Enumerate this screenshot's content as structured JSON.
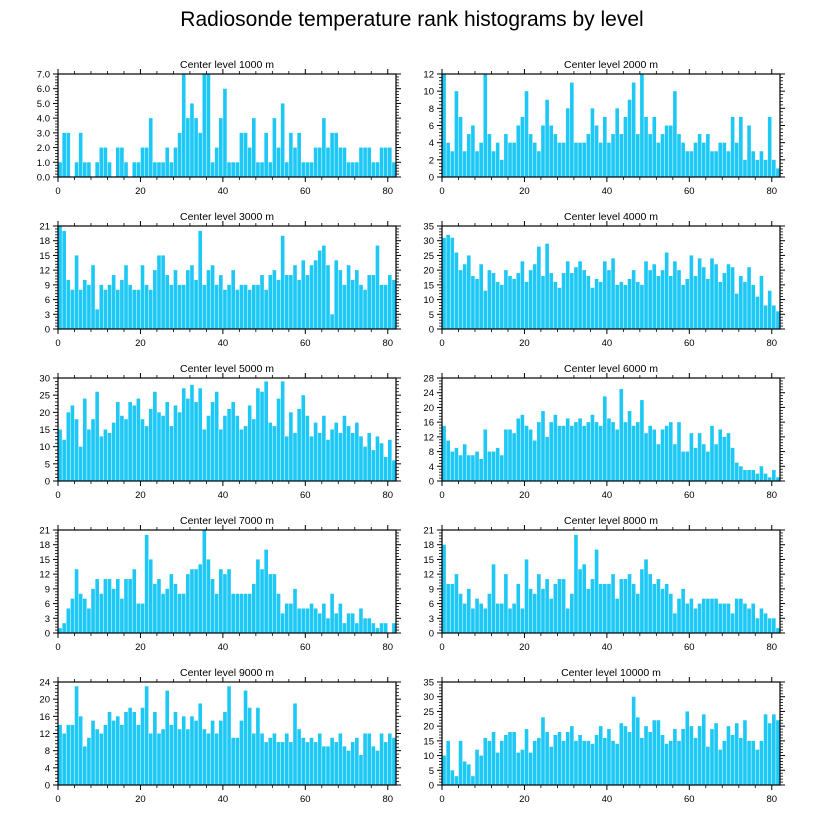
{
  "title": "Radiosonde temperature rank histograms by level",
  "bar_color": "#1ec8f5",
  "chart_data": [
    {
      "type": "bar",
      "title": "Center level 1000 m",
      "x_start": 0,
      "xlim": [
        0,
        82
      ],
      "x_ticks": [
        0,
        20,
        40,
        60,
        80
      ],
      "ylim": [
        0,
        7
      ],
      "y_ticks": [
        0,
        1,
        2,
        3,
        4,
        5,
        6,
        7
      ],
      "y_decimals": 1,
      "values": [
        1,
        3,
        3,
        0,
        1,
        3,
        1,
        1,
        0,
        1,
        2,
        2,
        1,
        0,
        2,
        2,
        1,
        0,
        1,
        1,
        2,
        2,
        4,
        1,
        1,
        1,
        2,
        1,
        2,
        3,
        7,
        4,
        5,
        4,
        3,
        7,
        7,
        1,
        2,
        4,
        6,
        1,
        1,
        1,
        3,
        3,
        2,
        4,
        1,
        1,
        3,
        1,
        4,
        2,
        5,
        1,
        3,
        2,
        3,
        1,
        1,
        1,
        2,
        2,
        4,
        2,
        3,
        3,
        2,
        2,
        1,
        1,
        1,
        2,
        2,
        2,
        1,
        1,
        2,
        2,
        2,
        1
      ]
    },
    {
      "type": "bar",
      "title": "Center level 2000 m",
      "x_start": 0,
      "xlim": [
        0,
        82
      ],
      "x_ticks": [
        0,
        20,
        40,
        60,
        80
      ],
      "ylim": [
        0,
        12
      ],
      "y_ticks": [
        0,
        2,
        4,
        6,
        8,
        10,
        12
      ],
      "y_decimals": 0,
      "values": [
        12,
        4,
        3,
        10,
        7,
        3,
        5,
        6,
        3,
        4,
        12,
        5,
        3,
        4,
        2,
        5,
        4,
        4,
        6,
        7,
        10,
        5,
        4,
        3,
        6,
        9,
        6,
        5,
        4,
        4,
        8,
        11,
        4,
        4,
        4,
        5,
        8,
        6,
        4,
        7,
        4,
        5,
        8,
        5,
        7,
        9,
        11,
        5,
        12,
        7,
        5,
        7,
        4,
        5,
        6,
        6,
        10,
        5,
        4,
        3,
        3,
        4,
        5,
        4,
        5,
        3,
        3,
        4,
        4,
        3,
        7,
        4,
        7,
        2,
        6,
        3,
        2,
        3,
        2,
        7,
        2,
        1
      ]
    },
    {
      "type": "bar",
      "title": "Center level 3000 m",
      "x_start": 0,
      "xlim": [
        0,
        82
      ],
      "x_ticks": [
        0,
        20,
        40,
        60,
        80
      ],
      "ylim": [
        0,
        21
      ],
      "y_ticks": [
        0,
        3,
        6,
        9,
        12,
        15,
        18,
        21
      ],
      "y_decimals": 0,
      "values": [
        21,
        20,
        10,
        8,
        15,
        8,
        10,
        9,
        13,
        4,
        9,
        8,
        9,
        11,
        8,
        10,
        13,
        9,
        8,
        8,
        13,
        9,
        8,
        12,
        15,
        15,
        11,
        9,
        12,
        9,
        9,
        12,
        13,
        10,
        20,
        9,
        12,
        13,
        9,
        11,
        8,
        9,
        12,
        8,
        9,
        9,
        8,
        9,
        9,
        11,
        8,
        11,
        12,
        10,
        19,
        11,
        11,
        13,
        10,
        14,
        11,
        13,
        14,
        16,
        17,
        13,
        3,
        14,
        12,
        9,
        13,
        10,
        12,
        9,
        8,
        11,
        11,
        17,
        9,
        9,
        11,
        10
      ]
    },
    {
      "type": "bar",
      "title": "Center level 4000 m",
      "x_start": 0,
      "xlim": [
        0,
        82
      ],
      "x_ticks": [
        0,
        20,
        40,
        60,
        80
      ],
      "ylim": [
        0,
        35
      ],
      "y_ticks": [
        0,
        5,
        10,
        15,
        20,
        25,
        30,
        35
      ],
      "y_decimals": 0,
      "values": [
        31,
        32,
        31,
        26,
        20,
        22,
        25,
        18,
        17,
        22,
        13,
        20,
        19,
        16,
        15,
        20,
        18,
        17,
        19,
        23,
        16,
        20,
        22,
        28,
        18,
        29,
        19,
        16,
        14,
        19,
        23,
        19,
        21,
        23,
        20,
        18,
        14,
        17,
        16,
        23,
        20,
        24,
        15,
        16,
        15,
        17,
        20,
        16,
        15,
        23,
        20,
        22,
        18,
        20,
        26,
        18,
        23,
        20,
        15,
        17,
        25,
        18,
        24,
        21,
        17,
        24,
        22,
        16,
        19,
        22,
        21,
        12,
        18,
        16,
        21,
        15,
        11,
        18,
        8,
        13,
        8,
        6
      ]
    },
    {
      "type": "bar",
      "title": "Center level 5000 m",
      "x_start": 0,
      "xlim": [
        0,
        82
      ],
      "x_ticks": [
        0,
        20,
        40,
        60,
        80
      ],
      "ylim": [
        0,
        30
      ],
      "y_ticks": [
        0,
        5,
        10,
        15,
        20,
        25,
        30
      ],
      "y_decimals": 0,
      "values": [
        15,
        12,
        20,
        22,
        18,
        10,
        24,
        15,
        18,
        26,
        13,
        15,
        14,
        17,
        23,
        19,
        18,
        23,
        22,
        24,
        18,
        16,
        21,
        26,
        20,
        19,
        23,
        16,
        22,
        20,
        27,
        24,
        28,
        23,
        27,
        15,
        19,
        23,
        26,
        15,
        19,
        21,
        23,
        19,
        15,
        16,
        22,
        18,
        27,
        26,
        29,
        17,
        16,
        24,
        29,
        13,
        20,
        14,
        21,
        25,
        19,
        13,
        17,
        14,
        19,
        12,
        15,
        17,
        14,
        19,
        16,
        14,
        17,
        13,
        10,
        14,
        9,
        13,
        11,
        7,
        12,
        6
      ]
    },
    {
      "type": "bar",
      "title": "Center level 6000 m",
      "x_start": 0,
      "xlim": [
        0,
        82
      ],
      "x_ticks": [
        0,
        20,
        40,
        60,
        80
      ],
      "ylim": [
        0,
        28
      ],
      "y_ticks": [
        0,
        4,
        8,
        12,
        16,
        20,
        24,
        28
      ],
      "y_decimals": 0,
      "values": [
        15,
        11,
        8,
        9,
        7,
        10,
        7,
        7,
        8,
        6,
        14,
        8,
        8,
        9,
        7,
        14,
        14,
        13,
        17,
        18,
        15,
        14,
        11,
        16,
        19,
        12,
        16,
        18,
        15,
        15,
        17,
        15,
        16,
        17,
        15,
        16,
        18,
        16,
        15,
        23,
        17,
        16,
        14,
        25,
        16,
        19,
        15,
        16,
        22,
        13,
        15,
        14,
        10,
        14,
        15,
        16,
        10,
        16,
        8,
        8,
        13,
        9,
        13,
        10,
        8,
        15,
        10,
        14,
        12,
        13,
        9,
        5,
        4,
        3,
        3,
        3,
        2,
        4,
        2,
        1,
        3,
        1
      ]
    },
    {
      "type": "bar",
      "title": "Center level 7000 m",
      "x_start": 0,
      "xlim": [
        0,
        82
      ],
      "x_ticks": [
        0,
        20,
        40,
        60,
        80
      ],
      "ylim": [
        0,
        21
      ],
      "y_ticks": [
        0,
        3,
        6,
        9,
        12,
        15,
        18,
        21
      ],
      "y_decimals": 0,
      "values": [
        1,
        2,
        5,
        7,
        13,
        8,
        7,
        5,
        9,
        11,
        8,
        11,
        11,
        9,
        11,
        7,
        11,
        11,
        13,
        6,
        6,
        20,
        15,
        10,
        11,
        8,
        9,
        12,
        10,
        8,
        8,
        12,
        13,
        13,
        14,
        21,
        15,
        11,
        8,
        13,
        12,
        13,
        8,
        8,
        8,
        8,
        8,
        10,
        15,
        13,
        17,
        12,
        12,
        8,
        4,
        6,
        6,
        9,
        5,
        5,
        5,
        6,
        5,
        4,
        6,
        3,
        8,
        4,
        6,
        2,
        4,
        4,
        2,
        5,
        3,
        3,
        2,
        1,
        2,
        2,
        0,
        2
      ]
    },
    {
      "type": "bar",
      "title": "Center level 8000 m",
      "x_start": 0,
      "xlim": [
        0,
        82
      ],
      "x_ticks": [
        0,
        20,
        40,
        60,
        80
      ],
      "ylim": [
        0,
        21
      ],
      "y_ticks": [
        0,
        3,
        6,
        9,
        12,
        15,
        18,
        21
      ],
      "y_decimals": 0,
      "values": [
        18,
        10,
        10,
        12,
        8,
        6,
        9,
        5,
        7,
        6,
        5,
        8,
        14,
        6,
        6,
        12,
        5,
        6,
        10,
        5,
        15,
        9,
        8,
        12,
        9,
        11,
        7,
        10,
        11,
        11,
        5,
        8,
        20,
        13,
        14,
        9,
        11,
        17,
        10,
        10,
        10,
        12,
        7,
        11,
        11,
        12,
        10,
        8,
        13,
        15,
        12,
        10,
        11,
        9,
        10,
        8,
        4,
        7,
        9,
        6,
        7,
        5,
        6,
        7,
        7,
        7,
        7,
        6,
        6,
        6,
        4,
        7,
        7,
        6,
        5,
        6,
        3,
        5,
        4,
        3,
        3,
        1
      ]
    },
    {
      "type": "bar",
      "title": "Center level 9000 m",
      "x_start": 0,
      "xlim": [
        0,
        82
      ],
      "x_ticks": [
        0,
        20,
        40,
        60,
        80
      ],
      "ylim": [
        0,
        24
      ],
      "y_ticks": [
        0,
        4,
        8,
        12,
        16,
        20,
        24
      ],
      "y_decimals": 0,
      "values": [
        14,
        12,
        14,
        14,
        23,
        16,
        9,
        11,
        15,
        13,
        12,
        14,
        17,
        15,
        16,
        14,
        17,
        18,
        17,
        14,
        18,
        23,
        12,
        17,
        12,
        13,
        22,
        14,
        17,
        13,
        16,
        13,
        16,
        15,
        19,
        13,
        12,
        15,
        12,
        15,
        17,
        23,
        11,
        11,
        15,
        22,
        18,
        12,
        18,
        12,
        10,
        11,
        12,
        10,
        10,
        12,
        10,
        19,
        13,
        11,
        10,
        11,
        10,
        12,
        9,
        9,
        11,
        10,
        12,
        9,
        8,
        10,
        11,
        7,
        12,
        12,
        9,
        8,
        12,
        10,
        12,
        11
      ]
    },
    {
      "type": "bar",
      "title": "Center level 10000 m",
      "x_start": 0,
      "xlim": [
        0,
        82
      ],
      "x_ticks": [
        0,
        20,
        40,
        60,
        80
      ],
      "ylim": [
        0,
        35
      ],
      "y_ticks": [
        0,
        5,
        10,
        15,
        20,
        25,
        30,
        35
      ],
      "y_decimals": 0,
      "values": [
        10,
        15,
        5,
        3,
        15,
        8,
        7,
        3,
        12,
        10,
        16,
        15,
        18,
        11,
        15,
        17,
        18,
        18,
        11,
        12,
        19,
        11,
        15,
        16,
        23,
        18,
        13,
        17,
        18,
        15,
        18,
        20,
        15,
        17,
        15,
        15,
        14,
        17,
        20,
        16,
        19,
        15,
        14,
        21,
        20,
        18,
        30,
        23,
        16,
        20,
        18,
        22,
        22,
        17,
        14,
        15,
        19,
        15,
        19,
        25,
        20,
        16,
        20,
        24,
        13,
        19,
        21,
        12,
        15,
        20,
        17,
        21,
        16,
        22,
        15,
        15,
        12,
        15,
        24,
        21,
        24,
        22
      ]
    }
  ]
}
